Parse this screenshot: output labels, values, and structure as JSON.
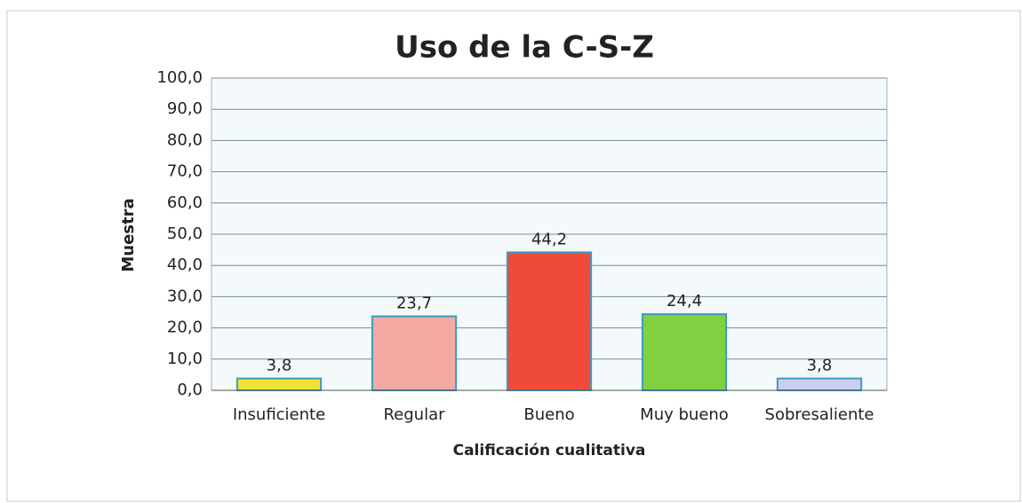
{
  "chart_data": {
    "type": "bar",
    "title": "Uso de la C-S-Z",
    "y_label": "Muestra",
    "x_label": "Calificación cualitativa",
    "categories": [
      "Insuficiente",
      "Regular",
      "Bueno",
      "Muy bueno",
      "Sobresaliente"
    ],
    "values": [
      3.8,
      23.7,
      44.2,
      24.4,
      3.8
    ],
    "value_labels": [
      "3,8",
      "23,7",
      "44,2",
      "24,4",
      "3,8"
    ],
    "colors": [
      "#f2e234",
      "#f2aaa2",
      "#f04a3a",
      "#80d042",
      "#cdcdf2"
    ],
    "ylim": [
      0,
      100
    ],
    "yticks": [
      {
        "value": 0,
        "label": "0,0"
      },
      {
        "value": 10,
        "label": "10,0"
      },
      {
        "value": 20,
        "label": "20,0"
      },
      {
        "value": 30,
        "label": "30,0"
      },
      {
        "value": 40,
        "label": "40,0"
      },
      {
        "value": 50,
        "label": "50,0"
      },
      {
        "value": 60,
        "label": "60,0"
      },
      {
        "value": 70,
        "label": "70,0"
      },
      {
        "value": 80,
        "label": "80,0"
      },
      {
        "value": 90,
        "label": "90,0"
      },
      {
        "value": 100,
        "label": "100,0"
      }
    ],
    "grid": true
  }
}
